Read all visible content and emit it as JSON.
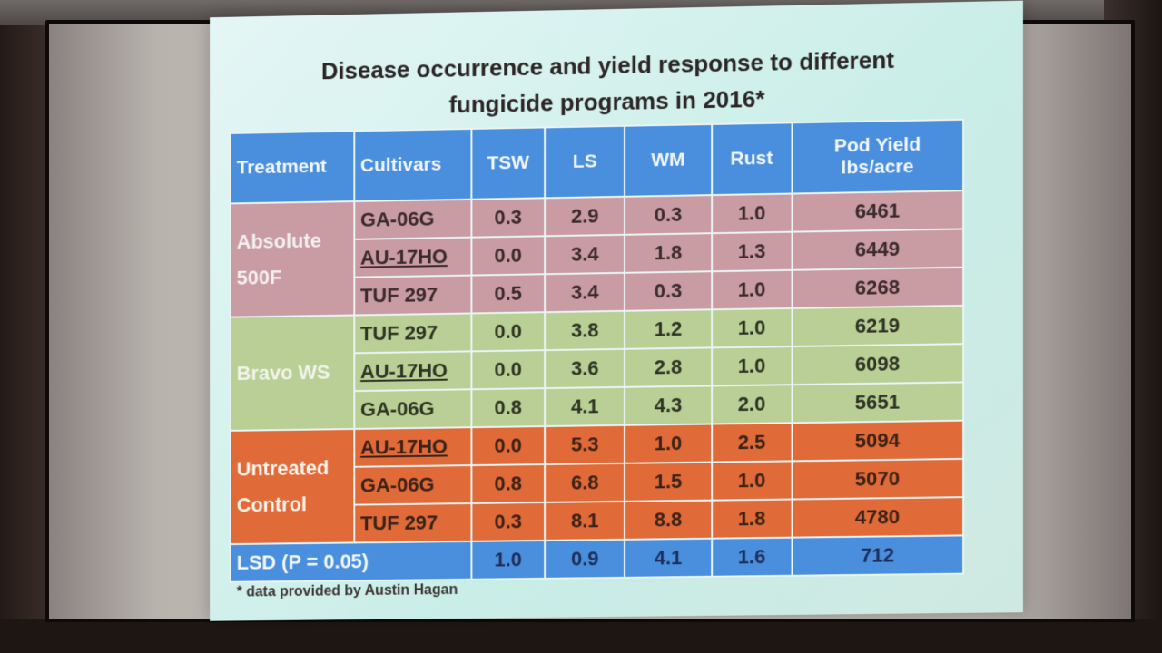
{
  "title_line1": "Disease occurrence and yield response to  different",
  "title_line2": "fungicide programs in 2016*",
  "headers": {
    "treatment": "Treatment",
    "cultivars": "Cultivars",
    "tsw": "TSW",
    "ls": "LS",
    "wm": "WM",
    "rust": "Rust",
    "yield_line1": "Pod Yield",
    "yield_line2": "lbs/acre"
  },
  "groups": [
    {
      "treatment_line1": "Absolute",
      "treatment_line2": "500F",
      "rows": [
        {
          "cultivar": "GA-06G",
          "tsw": "0.3",
          "ls": "2.9",
          "wm": "0.3",
          "rust": "1.0",
          "yield": "6461"
        },
        {
          "cultivar": "AU-17HO",
          "tsw": "0.0",
          "ls": "3.4",
          "wm": "1.8",
          "rust": "1.3",
          "yield": "6449"
        },
        {
          "cultivar": "TUF 297",
          "tsw": "0.5",
          "ls": "3.4",
          "wm": "0.3",
          "rust": "1.0",
          "yield": "6268"
        }
      ]
    },
    {
      "treatment_line1": "Bravo WS",
      "treatment_line2": "",
      "rows": [
        {
          "cultivar": "TUF 297",
          "tsw": "0.0",
          "ls": "3.8",
          "wm": "1.2",
          "rust": "1.0",
          "yield": "6219"
        },
        {
          "cultivar": "AU-17HO",
          "tsw": "0.0",
          "ls": "3.6",
          "wm": "2.8",
          "rust": "1.0",
          "yield": "6098"
        },
        {
          "cultivar": "GA-06G",
          "tsw": "0.8",
          "ls": "4.1",
          "wm": "4.3",
          "rust": "2.0",
          "yield": "5651"
        }
      ]
    },
    {
      "treatment_line1": "Untreated",
      "treatment_line2": "Control",
      "rows": [
        {
          "cultivar": "AU-17HO",
          "tsw": "0.0",
          "ls": "5.3",
          "wm": "1.0",
          "rust": "2.5",
          "yield": "5094"
        },
        {
          "cultivar": "GA-06G",
          "tsw": "0.8",
          "ls": "6.8",
          "wm": "1.5",
          "rust": "1.0",
          "yield": "5070"
        },
        {
          "cultivar": "TUF 297",
          "tsw": "0.3",
          "ls": "8.1",
          "wm": "8.8",
          "rust": "1.8",
          "yield": "4780"
        }
      ]
    }
  ],
  "lsd": {
    "label": "LSD (P = 0.05)",
    "tsw": "1.0",
    "ls": "0.9",
    "wm": "4.1",
    "rust": "1.6",
    "yield": "712"
  },
  "footnote": "* data provided by Austin Hagan"
}
